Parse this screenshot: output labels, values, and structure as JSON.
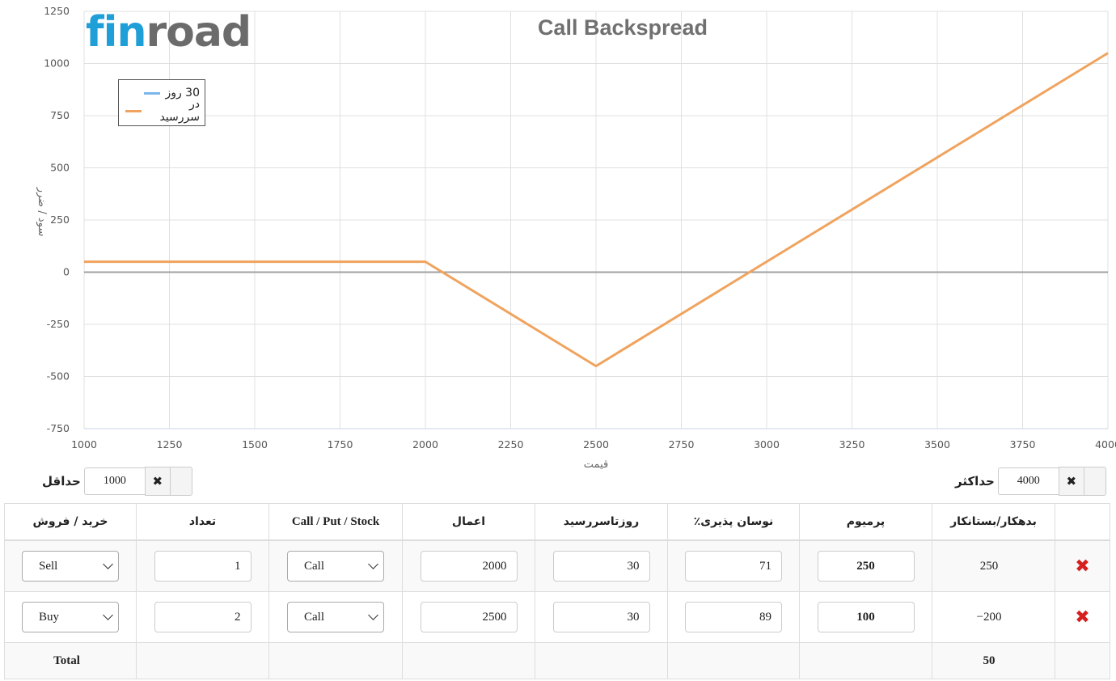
{
  "logo": {
    "part1": "fin",
    "part2": "road"
  },
  "chart_data": {
    "type": "line",
    "title": "Call Backspread",
    "xlabel": "قیمت",
    "ylabel": "سود / ضرر",
    "xlim": [
      1000,
      4000
    ],
    "ylim": [
      -750,
      1250
    ],
    "x_ticks": [
      1000,
      1250,
      1500,
      1750,
      2000,
      2250,
      2500,
      2750,
      3000,
      3250,
      3500,
      3750,
      4000
    ],
    "y_ticks": [
      1250,
      1000,
      750,
      500,
      250,
      0,
      -250,
      -500,
      -750
    ],
    "x_tick_labels": [
      "1000",
      "1250",
      "1500",
      "1750",
      "2000",
      "2250",
      "2500",
      "2750",
      "3000",
      "3250",
      "3500",
      "3750",
      "4000"
    ],
    "y_tick_labels": [
      "1250",
      "1000",
      "750",
      "500",
      "250",
      "0",
      "-250",
      "-500",
      "-750"
    ],
    "grid": true,
    "legend_position": "top-left",
    "series": [
      {
        "name": "30 روز",
        "color": "#7cb5ec",
        "x": [],
        "y": []
      },
      {
        "name": "در سررسید",
        "color": "#f0a35e",
        "x": [
          1000,
          2000,
          2500,
          4000
        ],
        "y": [
          50,
          50,
          -450,
          1050
        ]
      }
    ]
  },
  "controls": {
    "min_label": "حداقل",
    "min_value": "1000",
    "max_label": "حداکثر",
    "max_value": "4000",
    "clear_glyph": "✖"
  },
  "table": {
    "headers": [
      "خرید / فروش",
      "تعداد",
      "Call / Put / Stock",
      "اعمال",
      "روزتاسررسید",
      "٪نوسان پذیری",
      "پرمیوم",
      "بدهکار/بستانکار",
      ""
    ],
    "rows": [
      {
        "side": "Sell",
        "qty": "1",
        "type": "Call",
        "strike": "2000",
        "days": "30",
        "vol": "71",
        "premium": "250",
        "debit_credit": "250",
        "remove": "✖"
      },
      {
        "side": "Buy",
        "qty": "2",
        "type": "Call",
        "strike": "2500",
        "days": "30",
        "vol": "89",
        "premium": "100",
        "debit_credit": "−200",
        "remove": "✖"
      }
    ],
    "total_label": "Total",
    "total_value": "50"
  }
}
